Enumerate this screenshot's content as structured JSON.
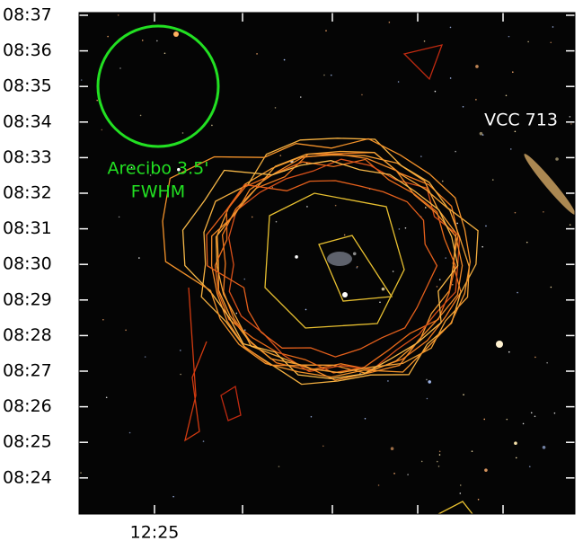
{
  "axes": {
    "y_tick_labels": [
      "08:37",
      "08:36",
      "08:35",
      "08:34",
      "08:33",
      "08:32",
      "08:31",
      "08:30",
      "08:29",
      "08:28",
      "08:27",
      "08:26",
      "08:25",
      "08:24"
    ],
    "x_tick_labels": [
      "12:25"
    ]
  },
  "annotations": {
    "beam_label": [
      "Arecibo 3.5'",
      "FWHM"
    ],
    "galaxy_label": "VCC 713"
  }
}
